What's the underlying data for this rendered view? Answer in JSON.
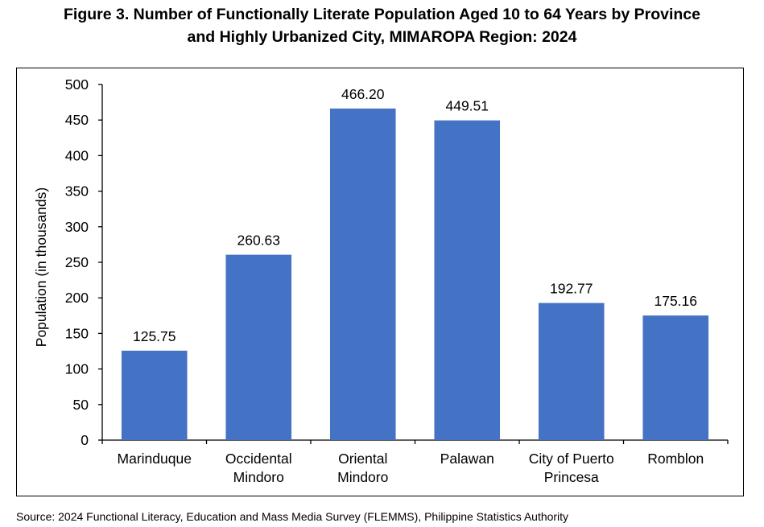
{
  "chart_data": {
    "type": "bar",
    "title_lines": [
      "Figure 3. Number of Functionally Literate Population Aged 10 to 64 Years by Province",
      "and Highly Urbanized City, MIMAROPA Region: 2024"
    ],
    "categories": [
      [
        "Marinduque"
      ],
      [
        "Occidental",
        "Mindoro"
      ],
      [
        "Oriental",
        "Mindoro"
      ],
      [
        "Palawan"
      ],
      [
        "City of Puerto",
        "Princesa"
      ],
      [
        "Romblon"
      ]
    ],
    "values": [
      125.75,
      260.63,
      466.2,
      449.51,
      192.77,
      175.16
    ],
    "data_labels": [
      "125.75",
      "260.63",
      "466.20",
      "449.51",
      "192.77",
      "175.16"
    ],
    "xlabel": "",
    "ylabel": "Population (in thousands)",
    "ylim": [
      0,
      500
    ],
    "yticks": [
      0,
      50,
      100,
      150,
      200,
      250,
      300,
      350,
      400,
      450,
      500
    ],
    "bar_color": "#4472C4",
    "grid": false,
    "legend": "none"
  },
  "source": "Source: 2024 Functional Literacy, Education and Mass Media Survey (FLEMMS), Philippine Statistics Authority"
}
